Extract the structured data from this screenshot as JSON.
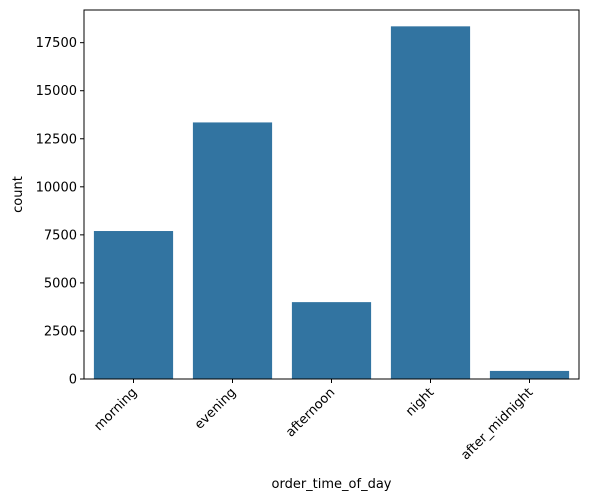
{
  "chart_data": {
    "type": "bar",
    "categories": [
      "morning",
      "evening",
      "afternoon",
      "night",
      "after_midnight"
    ],
    "values": [
      7700,
      13350,
      4000,
      18350,
      420
    ],
    "xlabel": "order_time_of_day",
    "ylabel": "count",
    "ylim": [
      0,
      19200
    ],
    "yticks": [
      0,
      2500,
      5000,
      7500,
      10000,
      12500,
      15000,
      17500
    ],
    "ytick_labels": [
      "0",
      "2500",
      "5000",
      "7500",
      "10000",
      "12500",
      "15000",
      "17500"
    ],
    "grid": false,
    "x_tick_rotation": 45,
    "bar_color": "#3274a1"
  }
}
